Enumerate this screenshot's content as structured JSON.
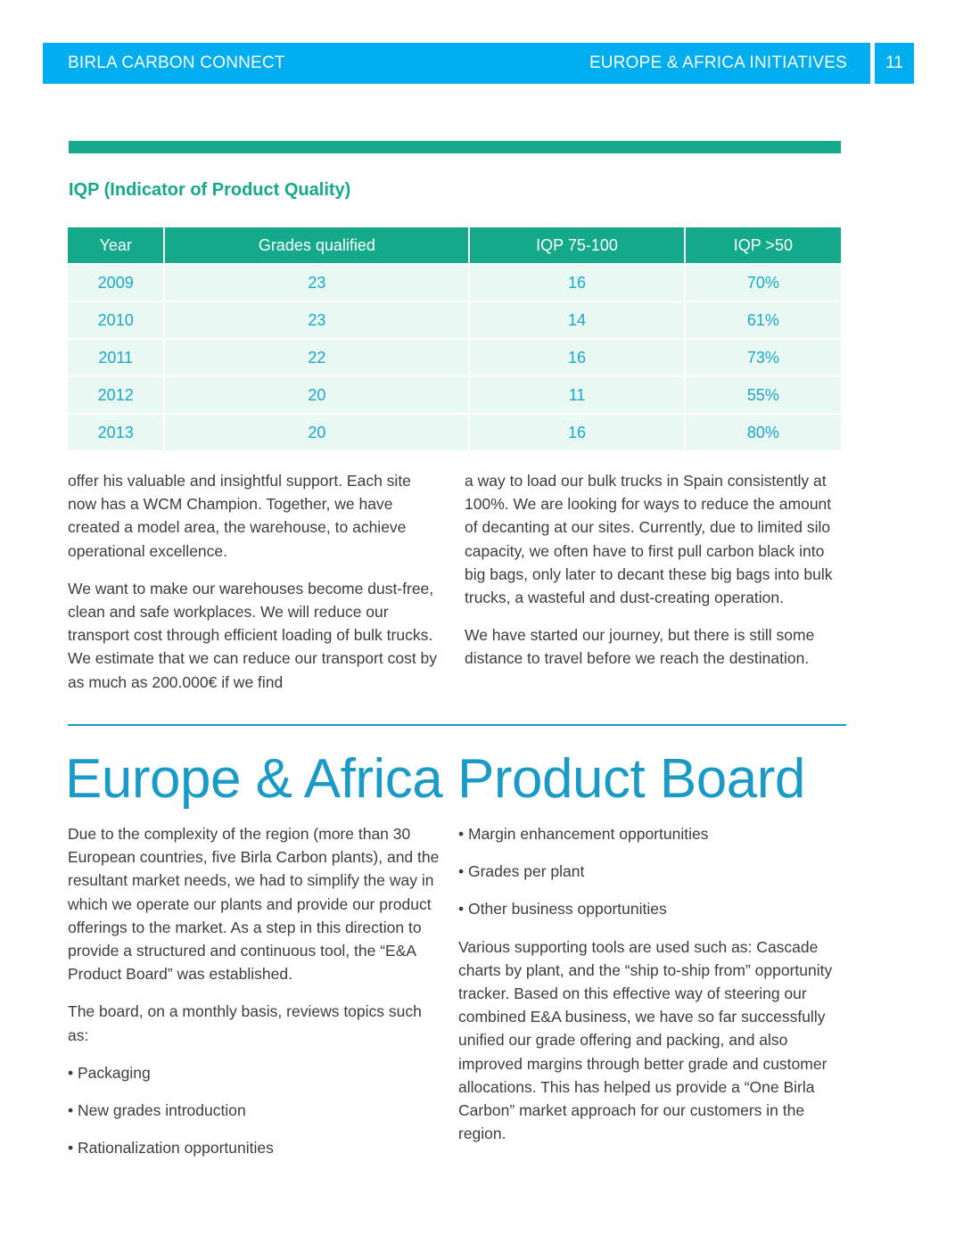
{
  "header": {
    "left_label": "BIRLA CARBON CONNECT",
    "right_label": "EUROPE & AFRICA INITIATIVES",
    "page_number": "11"
  },
  "colors": {
    "header_blue": "#00aeef",
    "table_green": "#14a98b",
    "title_blue": "#1a9bc7"
  },
  "table": {
    "title": "IQP (Indicator of Product Quality)",
    "headers": [
      "Year",
      "Grades qualified",
      "IQP 75-100",
      "IQP >50"
    ],
    "rows": [
      [
        "2009",
        "23",
        "16",
        "70%"
      ],
      [
        "2010",
        "23",
        "14",
        "61%"
      ],
      [
        "2011",
        "22",
        "16",
        "73%"
      ],
      [
        "2012",
        "20",
        "11",
        "55%"
      ],
      [
        "2013",
        "20",
        "16",
        "80%"
      ]
    ]
  },
  "upper_text": {
    "col1_p1": "offer his valuable and insightful support. Each site now has a WCM Champion. Together, we have created a model area, the warehouse, to achieve operational excellence.",
    "col1_p2": "We want to make our warehouses become dust-free, clean and safe workplaces. We will reduce our transport cost through efficient loading of bulk trucks. We estimate that we can reduce our transport cost by as much as 200.000€ if we find",
    "col2_p1": "a way to load our bulk trucks in Spain consistently at 100%. We are looking for ways to reduce the amount of decanting at our sites. Currently, due to limited silo capacity, we often have to first pull carbon black into big bags, only later to decant these big bags into bulk trucks, a wasteful and dust-creating operation.",
    "col2_p2": "We have started our journey, but there is still some distance to travel before we reach the destination."
  },
  "section": {
    "title": "Europe & Africa Product Board",
    "col3_p1": "Due to the complexity of the region (more than 30 European countries, five Birla Carbon plants), and the resultant market needs, we had to simplify the way in which we operate our plants and provide our product offerings to the market. As a step in this direction to provide a structured and continuous tool, the “E&A Product Board” was established.",
    "col3_p2": "The board, on a monthly basis, reviews topics such as:",
    "bullets_left": [
      "• Packaging",
      "• New grades introduction",
      "• Rationalization opportunities"
    ],
    "bullets_right": [
      "• Margin enhancement opportunities",
      "• Grades per plant",
      "• Other business opportunities"
    ],
    "col4_p1": "Various supporting tools are used such as: Cascade charts by plant, and the “ship to-ship from” opportunity tracker. Based on this effective way of steering our combined E&A business, we have so far successfully unified our grade offering and packing, and also improved margins through better grade and customer allocations. This has helped us provide a “One Birla Carbon” market approach for our customers in the region."
  }
}
